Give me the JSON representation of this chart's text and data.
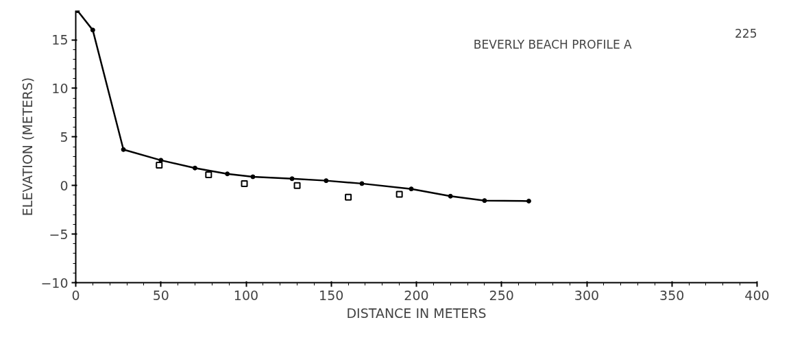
{
  "chart_data": {
    "type": "line",
    "title": "BEVERLY BEACH PROFILE A",
    "xlabel": "DISTANCE IN METERS",
    "ylabel": "ELEVATION (METERS)",
    "annotations": [
      "225"
    ],
    "series": [
      {
        "color": "#000000",
        "marker": "circle",
        "x": [
          1,
          10,
          28,
          50,
          70,
          89,
          104,
          127,
          147,
          168,
          197,
          220,
          240,
          266
        ],
        "values": [
          18,
          16,
          3.7,
          2.6,
          1.8,
          1.2,
          0.9,
          0.7,
          0.5,
          0.2,
          -0.35,
          -1.1,
          -1.55,
          -1.6
        ]
      },
      {
        "type": "scatter",
        "color": "#000000",
        "marker": "square",
        "x": [
          49,
          78,
          99,
          130,
          160,
          190
        ],
        "values": [
          2.1,
          1.1,
          0.2,
          0,
          -1.2,
          -0.9
        ]
      }
    ],
    "xlim": [
      0,
      400
    ],
    "xticks": [
      0,
      50,
      100,
      150,
      200,
      250,
      300,
      350,
      400
    ],
    "ylim": [
      -10,
      18
    ],
    "yticks": [
      -10,
      -5,
      0,
      5,
      10,
      15
    ],
    "grid": false
  }
}
